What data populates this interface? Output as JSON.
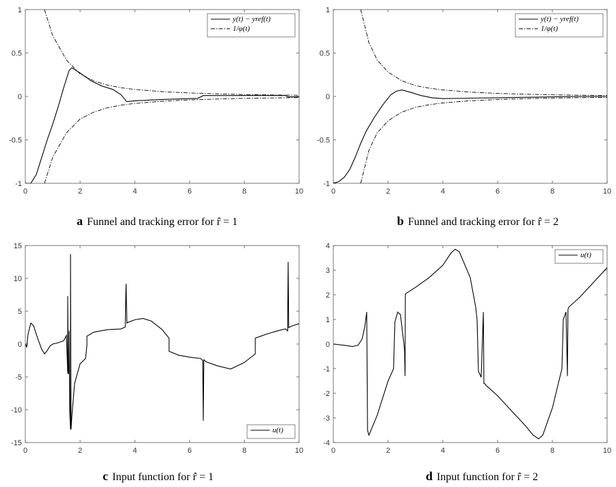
{
  "captions": {
    "a": {
      "letter": "a",
      "text": "Funnel and tracking error for r̂ = 1"
    },
    "b": {
      "letter": "b",
      "text": "Funnel and tracking error for r̂ = 2"
    },
    "c": {
      "letter": "c",
      "text": "Input function for r̂ = 1"
    },
    "d": {
      "letter": "d",
      "text": "Input function for r̂ = 2"
    }
  },
  "chart_data": [
    {
      "id": "a",
      "type": "line",
      "xlim": [
        0,
        10
      ],
      "ylim": [
        -1,
        1
      ],
      "xticks": [
        "0",
        "2",
        "4",
        "6",
        "8",
        "10"
      ],
      "yticks": [
        "-1",
        "-0.5",
        "0",
        "0.5",
        "1"
      ],
      "legend": {
        "position": "top-right",
        "entries": [
          "y(t) − yref(t)",
          "1/φ(t)"
        ]
      },
      "series": [
        {
          "name": "y(t) − yref(t)",
          "style": "solid",
          "x": [
            0,
            0.2,
            0.4,
            0.6,
            0.8,
            1.0,
            1.2,
            1.4,
            1.6,
            1.7,
            1.8,
            2.0,
            2.4,
            2.8,
            3.2,
            3.5,
            3.7,
            4.0,
            5.0,
            6.0,
            6.3,
            6.5,
            7,
            8,
            9,
            9.5,
            9.6,
            10
          ],
          "y": [
            -1,
            -1,
            -0.9,
            -0.7,
            -0.5,
            -0.32,
            -0.12,
            0.1,
            0.3,
            0.33,
            0.31,
            0.27,
            0.18,
            0.12,
            0.08,
            0.02,
            -0.06,
            -0.05,
            -0.035,
            -0.025,
            -0.022,
            0.01,
            0.01,
            0.01,
            0.01,
            0.01,
            -0.005,
            -0.005
          ]
        },
        {
          "name": "1/φ(t)",
          "style": "dashdot",
          "x": [
            0.7,
            1.0,
            1.5,
            2.0,
            2.5,
            3.0,
            3.5,
            4.0,
            5.0,
            6.0,
            7.0,
            8.0,
            9.0,
            10.0
          ],
          "y": [
            1.0,
            0.7,
            0.42,
            0.26,
            0.18,
            0.13,
            0.1,
            0.08,
            0.055,
            0.04,
            0.03,
            0.022,
            0.017,
            0.013
          ]
        }
      ]
    },
    {
      "id": "b",
      "type": "line",
      "xlim": [
        0,
        10
      ],
      "ylim": [
        -1,
        1
      ],
      "xticks": [
        "0",
        "2",
        "4",
        "6",
        "8",
        "10"
      ],
      "yticks": [
        "-1",
        "-0.5",
        "0",
        "0.5",
        "1"
      ],
      "legend": {
        "position": "top-right",
        "entries": [
          "y(t) − yref(t)",
          "1/φ(t)"
        ]
      },
      "series": [
        {
          "name": "y(t) − yref(t)",
          "style": "solid",
          "x": [
            0,
            0.2,
            0.4,
            0.6,
            0.8,
            1.0,
            1.2,
            1.5,
            1.8,
            2.1,
            2.3,
            2.5,
            2.8,
            3.2,
            3.6,
            4.0,
            5,
            6,
            7,
            8,
            9,
            10
          ],
          "y": [
            -1,
            -0.98,
            -0.93,
            -0.84,
            -0.7,
            -0.54,
            -0.4,
            -0.24,
            -0.1,
            0.02,
            0.06,
            0.075,
            0.05,
            0.01,
            -0.015,
            -0.025,
            -0.02,
            -0.015,
            -0.01,
            -0.005,
            0,
            0
          ]
        },
        {
          "name": "1/φ(t)",
          "style": "dashdot",
          "x": [
            1.0,
            1.3,
            1.6,
            2.0,
            2.5,
            3.0,
            3.5,
            4.0,
            5.0,
            6.0,
            7.0,
            8.0,
            9.0,
            10.0
          ],
          "y": [
            1.0,
            0.62,
            0.42,
            0.28,
            0.18,
            0.125,
            0.095,
            0.075,
            0.05,
            0.035,
            0.026,
            0.019,
            0.014,
            0.011
          ]
        }
      ]
    },
    {
      "id": "c",
      "type": "line",
      "xlim": [
        0,
        10
      ],
      "ylim": [
        -15,
        15
      ],
      "xticks": [
        "0",
        "2",
        "4",
        "6",
        "8",
        "10"
      ],
      "yticks": [
        "-15",
        "-10",
        "-5",
        "0",
        "5",
        "10",
        "15"
      ],
      "legend": {
        "position": "bottom-right",
        "entries": [
          "u(t)"
        ]
      },
      "series": [
        {
          "name": "u(t)",
          "style": "solid",
          "x": [
            0,
            0.05,
            0.1,
            0.2,
            0.3,
            0.4,
            0.5,
            0.6,
            0.7,
            0.8,
            0.9,
            1.0,
            1.2,
            1.4,
            1.5,
            1.55,
            1.55,
            1.57,
            1.58,
            1.6,
            1.6,
            1.62,
            1.65,
            1.65,
            1.67,
            1.7,
            1.8,
            2.0,
            2.2,
            2.25,
            2.25,
            2.5,
            3.0,
            3.5,
            3.65,
            3.68,
            3.71,
            3.75,
            4.0,
            4.3,
            4.6,
            5.0,
            5.25,
            5.25,
            5.6,
            6.0,
            6.4,
            6.48,
            6.5,
            6.52,
            6.6,
            7.0,
            7.5,
            8.0,
            8.4,
            8.4,
            8.8,
            9.2,
            9.5,
            9.58,
            9.6,
            9.62,
            9.7,
            10.0
          ],
          "y": [
            0,
            -0.5,
            1.5,
            3.2,
            2.8,
            1.5,
            0.3,
            -0.8,
            -1.5,
            -1.0,
            -0.3,
            0.0,
            0.2,
            0.5,
            1.3,
            -4.5,
            7.3,
            -4.0,
            -4.5,
            -4.5,
            2.0,
            -10.0,
            -13.0,
            13.7,
            -13.0,
            -11.0,
            -6.0,
            -3.0,
            -2.2,
            -0.2,
            1.2,
            1.8,
            2.2,
            2.3,
            2.6,
            9.2,
            3.2,
            3.3,
            3.7,
            3.9,
            3.5,
            2.2,
            0.9,
            -1.1,
            -1.7,
            -2.0,
            -2.2,
            -2.5,
            -11.7,
            -2.4,
            -2.7,
            -3.3,
            -3.8,
            -2.8,
            -1.5,
            0.9,
            1.5,
            2.0,
            2.3,
            2.0,
            12.5,
            2.5,
            2.7,
            3.1
          ]
        }
      ]
    },
    {
      "id": "d",
      "type": "line",
      "xlim": [
        0,
        10
      ],
      "ylim": [
        -4,
        4
      ],
      "xticks": [
        "0",
        "2",
        "4",
        "6",
        "8",
        "10"
      ],
      "yticks": [
        "-4",
        "-3",
        "-2",
        "-1",
        "0",
        "1",
        "2",
        "3",
        "4"
      ],
      "legend": {
        "position": "top-right",
        "entries": [
          "u(t)"
        ]
      },
      "series": [
        {
          "name": "u(t)",
          "style": "solid",
          "x": [
            0,
            0.4,
            0.7,
            0.9,
            1.05,
            1.15,
            1.22,
            1.25,
            1.3,
            1.6,
            2.0,
            2.2,
            2.25,
            2.35,
            2.45,
            2.6,
            2.62,
            2.63,
            2.65,
            3.0,
            3.5,
            4.0,
            4.3,
            4.45,
            4.6,
            5.0,
            5.2,
            5.25,
            5.3,
            5.4,
            5.48,
            5.5,
            5.52,
            5.6,
            6.0,
            6.5,
            7.0,
            7.3,
            7.5,
            7.65,
            8.0,
            8.35,
            8.4,
            8.5,
            8.55,
            8.57,
            8.6,
            9.0,
            9.5,
            10.0
          ],
          "y": [
            0,
            -0.05,
            -0.1,
            -0.05,
            0.2,
            0.7,
            1.3,
            -3.5,
            -3.7,
            -2.9,
            -1.5,
            -1.0,
            0.9,
            1.3,
            1.2,
            -0.2,
            -1.3,
            2.0,
            2.05,
            2.3,
            2.7,
            3.2,
            3.7,
            3.85,
            3.75,
            2.7,
            1.5,
            1.0,
            -1.1,
            -1.35,
            1.3,
            -1.6,
            -1.6,
            -1.7,
            -2.1,
            -2.7,
            -3.3,
            -3.7,
            -3.85,
            -3.7,
            -2.6,
            -1.0,
            1.0,
            1.3,
            -1.3,
            1.4,
            1.5,
            1.9,
            2.5,
            3.1
          ]
        }
      ]
    }
  ]
}
